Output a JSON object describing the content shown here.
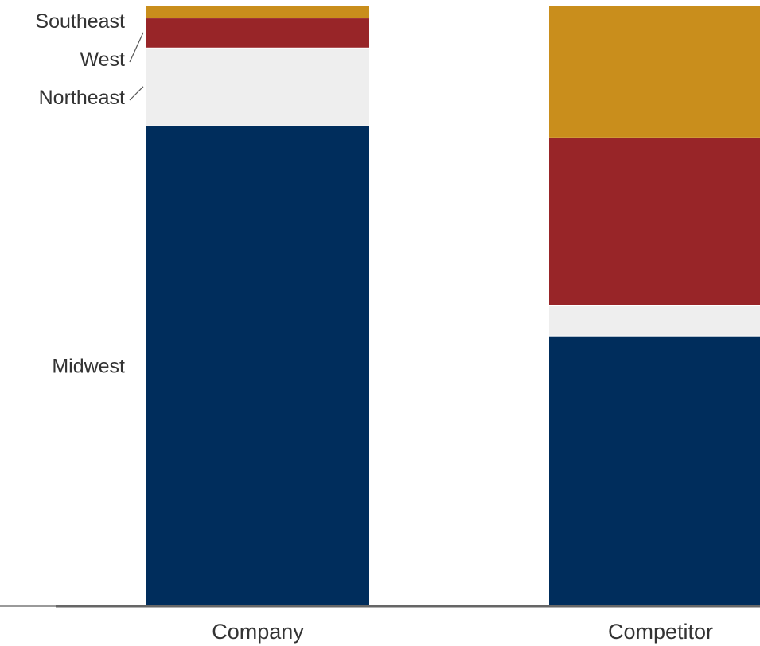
{
  "chart_data": {
    "type": "bar",
    "stacked": true,
    "normalized_percent": true,
    "categories": [
      "Company",
      "Competitor"
    ],
    "series": [
      {
        "name": "Midwest",
        "values": [
          80,
          45
        ],
        "color": "#002d5c"
      },
      {
        "name": "Northeast",
        "values": [
          13,
          5
        ],
        "color": "#eeeeee"
      },
      {
        "name": "West",
        "values": [
          5,
          28
        ],
        "color": "#982528"
      },
      {
        "name": "Southeast",
        "values": [
          2,
          22
        ],
        "color": "#c98e1c"
      }
    ],
    "ylim": [
      0,
      100
    ],
    "grid": false,
    "legend": "direct labels left of first bar"
  }
}
